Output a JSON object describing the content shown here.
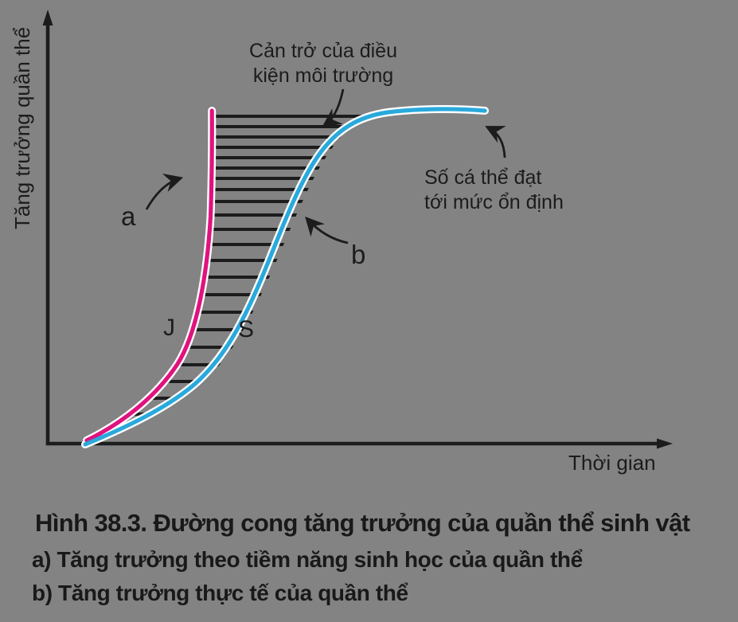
{
  "figure": {
    "type": "textbook-biology-figure",
    "language": "Vietnamese"
  },
  "colors": {
    "background": "#838383",
    "ink": "#1c1c1c",
    "curve_j": "#e0127f",
    "curve_s": "#29a9dc",
    "curve_halo": "#ffffff"
  },
  "chart": {
    "y_axis_label": "Tăng trưởng quần thể",
    "x_axis_label": "Thời gian",
    "annotation_env_line1": "Cản trở của điều",
    "annotation_env_line2": "kiện môi trường",
    "annotation_stable_line1": "Số cá thể đạt",
    "annotation_stable_line2": "tới mức ổn định",
    "label_a": "a",
    "label_b": "b",
    "label_j": "J",
    "label_s": "S"
  },
  "caption": {
    "title": "Hình 38.3. Đường cong tăng trưởng của quần thể sinh vật",
    "line_a": "a) Tăng trưởng theo tiềm năng sinh học của quần thể",
    "line_b": "b) Tăng trưởng thực tế của quần thể"
  },
  "chart_data": {
    "type": "line",
    "title": "Hình 38.3. Đường cong tăng trưởng của quần thể sinh vật",
    "xlabel": "Thời gian",
    "ylabel": "Tăng trưởng quần thể",
    "axes_numeric": false,
    "xlim_normalized": [
      0,
      1
    ],
    "ylim_normalized": [
      0,
      1
    ],
    "grid": false,
    "legend_position": "none",
    "series": [
      {
        "name": "J",
        "callout": "a",
        "description": "Tăng trưởng theo tiềm năng sinh học của quần thể (đường cong hình J, tăng theo hàm mũ)",
        "color": "#e0127f",
        "x": [
          0.0,
          0.05,
          0.1,
          0.14,
          0.17,
          0.19,
          0.2,
          0.21,
          0.21
        ],
        "y": [
          0.0,
          0.06,
          0.15,
          0.28,
          0.45,
          0.63,
          0.8,
          0.92,
          1.0
        ]
      },
      {
        "name": "S",
        "callout": "b",
        "description": "Tăng trưởng thực tế của quần thể (đường cong hình S, đạt mức ổn định)",
        "color": "#29a9dc",
        "x": [
          0.0,
          0.07,
          0.14,
          0.2,
          0.26,
          0.31,
          0.37,
          0.43,
          0.5,
          0.58,
          0.67,
          0.78,
          0.9,
          1.0
        ],
        "y": [
          0.0,
          0.05,
          0.11,
          0.18,
          0.28,
          0.41,
          0.57,
          0.72,
          0.84,
          0.92,
          0.97,
          0.99,
          1.0,
          1.0
        ]
      }
    ],
    "annotations": [
      {
        "text": "Cản trở của điều kiện môi trường",
        "points_to": "vùng gạch chéo giữa hai đường cong J và S"
      },
      {
        "text": "Số cá thể đạt tới mức ổn định",
        "points_to": "phần nằm ngang (tiệm cận) của đường cong S"
      },
      {
        "text": "a",
        "points_to": "đường cong J"
      },
      {
        "text": "b",
        "points_to": "đường cong S"
      }
    ],
    "hatched_region": "giữa đường cong J và đường cong S (gạch ngang)"
  }
}
